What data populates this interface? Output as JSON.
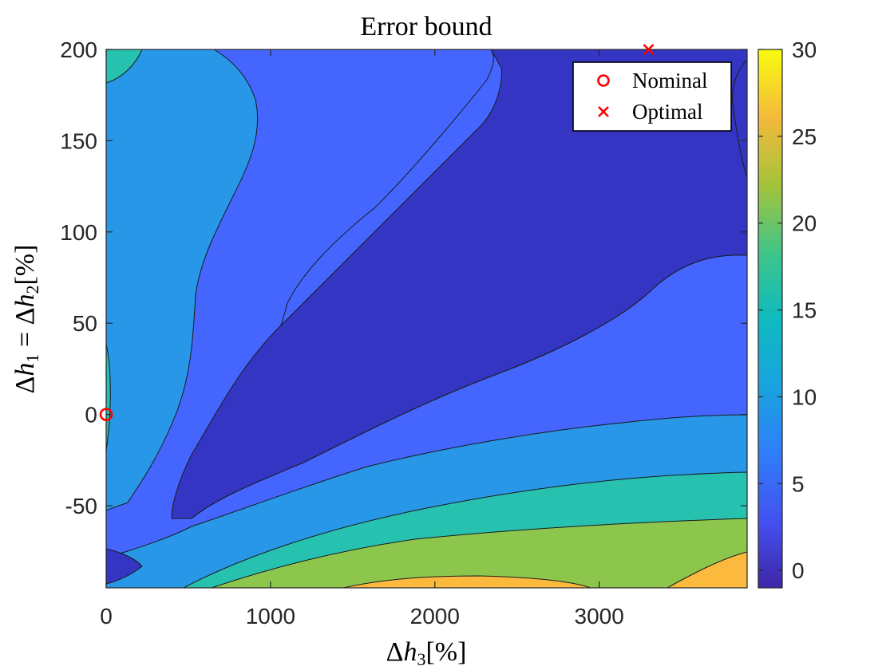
{
  "chart_data": {
    "type": "contour",
    "title": "Error bound",
    "xlabel": {
      "delta": "Δ",
      "var": "h",
      "sub": "3",
      "unit": "[%]"
    },
    "ylabel": {
      "delta": "Δ",
      "var1": "h",
      "sub1": "1",
      "eq": " = ",
      "var2": "h",
      "sub2": "2",
      "unit": "[%]"
    },
    "xlim": [
      0,
      3900
    ],
    "ylim": [
      -95,
      200
    ],
    "x_ticks": [
      "0",
      "1000",
      "2000",
      "3000"
    ],
    "x_tick_values": [
      0,
      1000,
      2000,
      3000
    ],
    "y_ticks": [
      "200",
      "150",
      "100",
      "50",
      "0",
      "-50"
    ],
    "y_tick_values": [
      200,
      150,
      100,
      50,
      0,
      -50
    ],
    "colorbar": {
      "range": [
        -1,
        30
      ],
      "ticks": [
        "30",
        "25",
        "20",
        "15",
        "10",
        "5",
        "0"
      ],
      "tick_values": [
        30,
        25,
        20,
        15,
        10,
        5,
        0
      ],
      "colormap": "parula"
    },
    "contour_levels": [
      2.5,
      7.5,
      12.5,
      17.5,
      22.5
    ],
    "level_colors": [
      "#3535c4",
      "#4466ff",
      "#2897e8",
      "#27c1b0",
      "#8cc64c",
      "#fbb93d"
    ],
    "points": [
      {
        "name": "Nominal",
        "marker": "circle",
        "x": 0,
        "y": 0,
        "color": "#ff0000"
      },
      {
        "name": "Optimal",
        "marker": "x",
        "x": 3300,
        "y": 200,
        "color": "#ff0000"
      }
    ],
    "legend": {
      "position": "top-right",
      "entries": [
        "Nominal",
        "Optimal"
      ]
    }
  }
}
